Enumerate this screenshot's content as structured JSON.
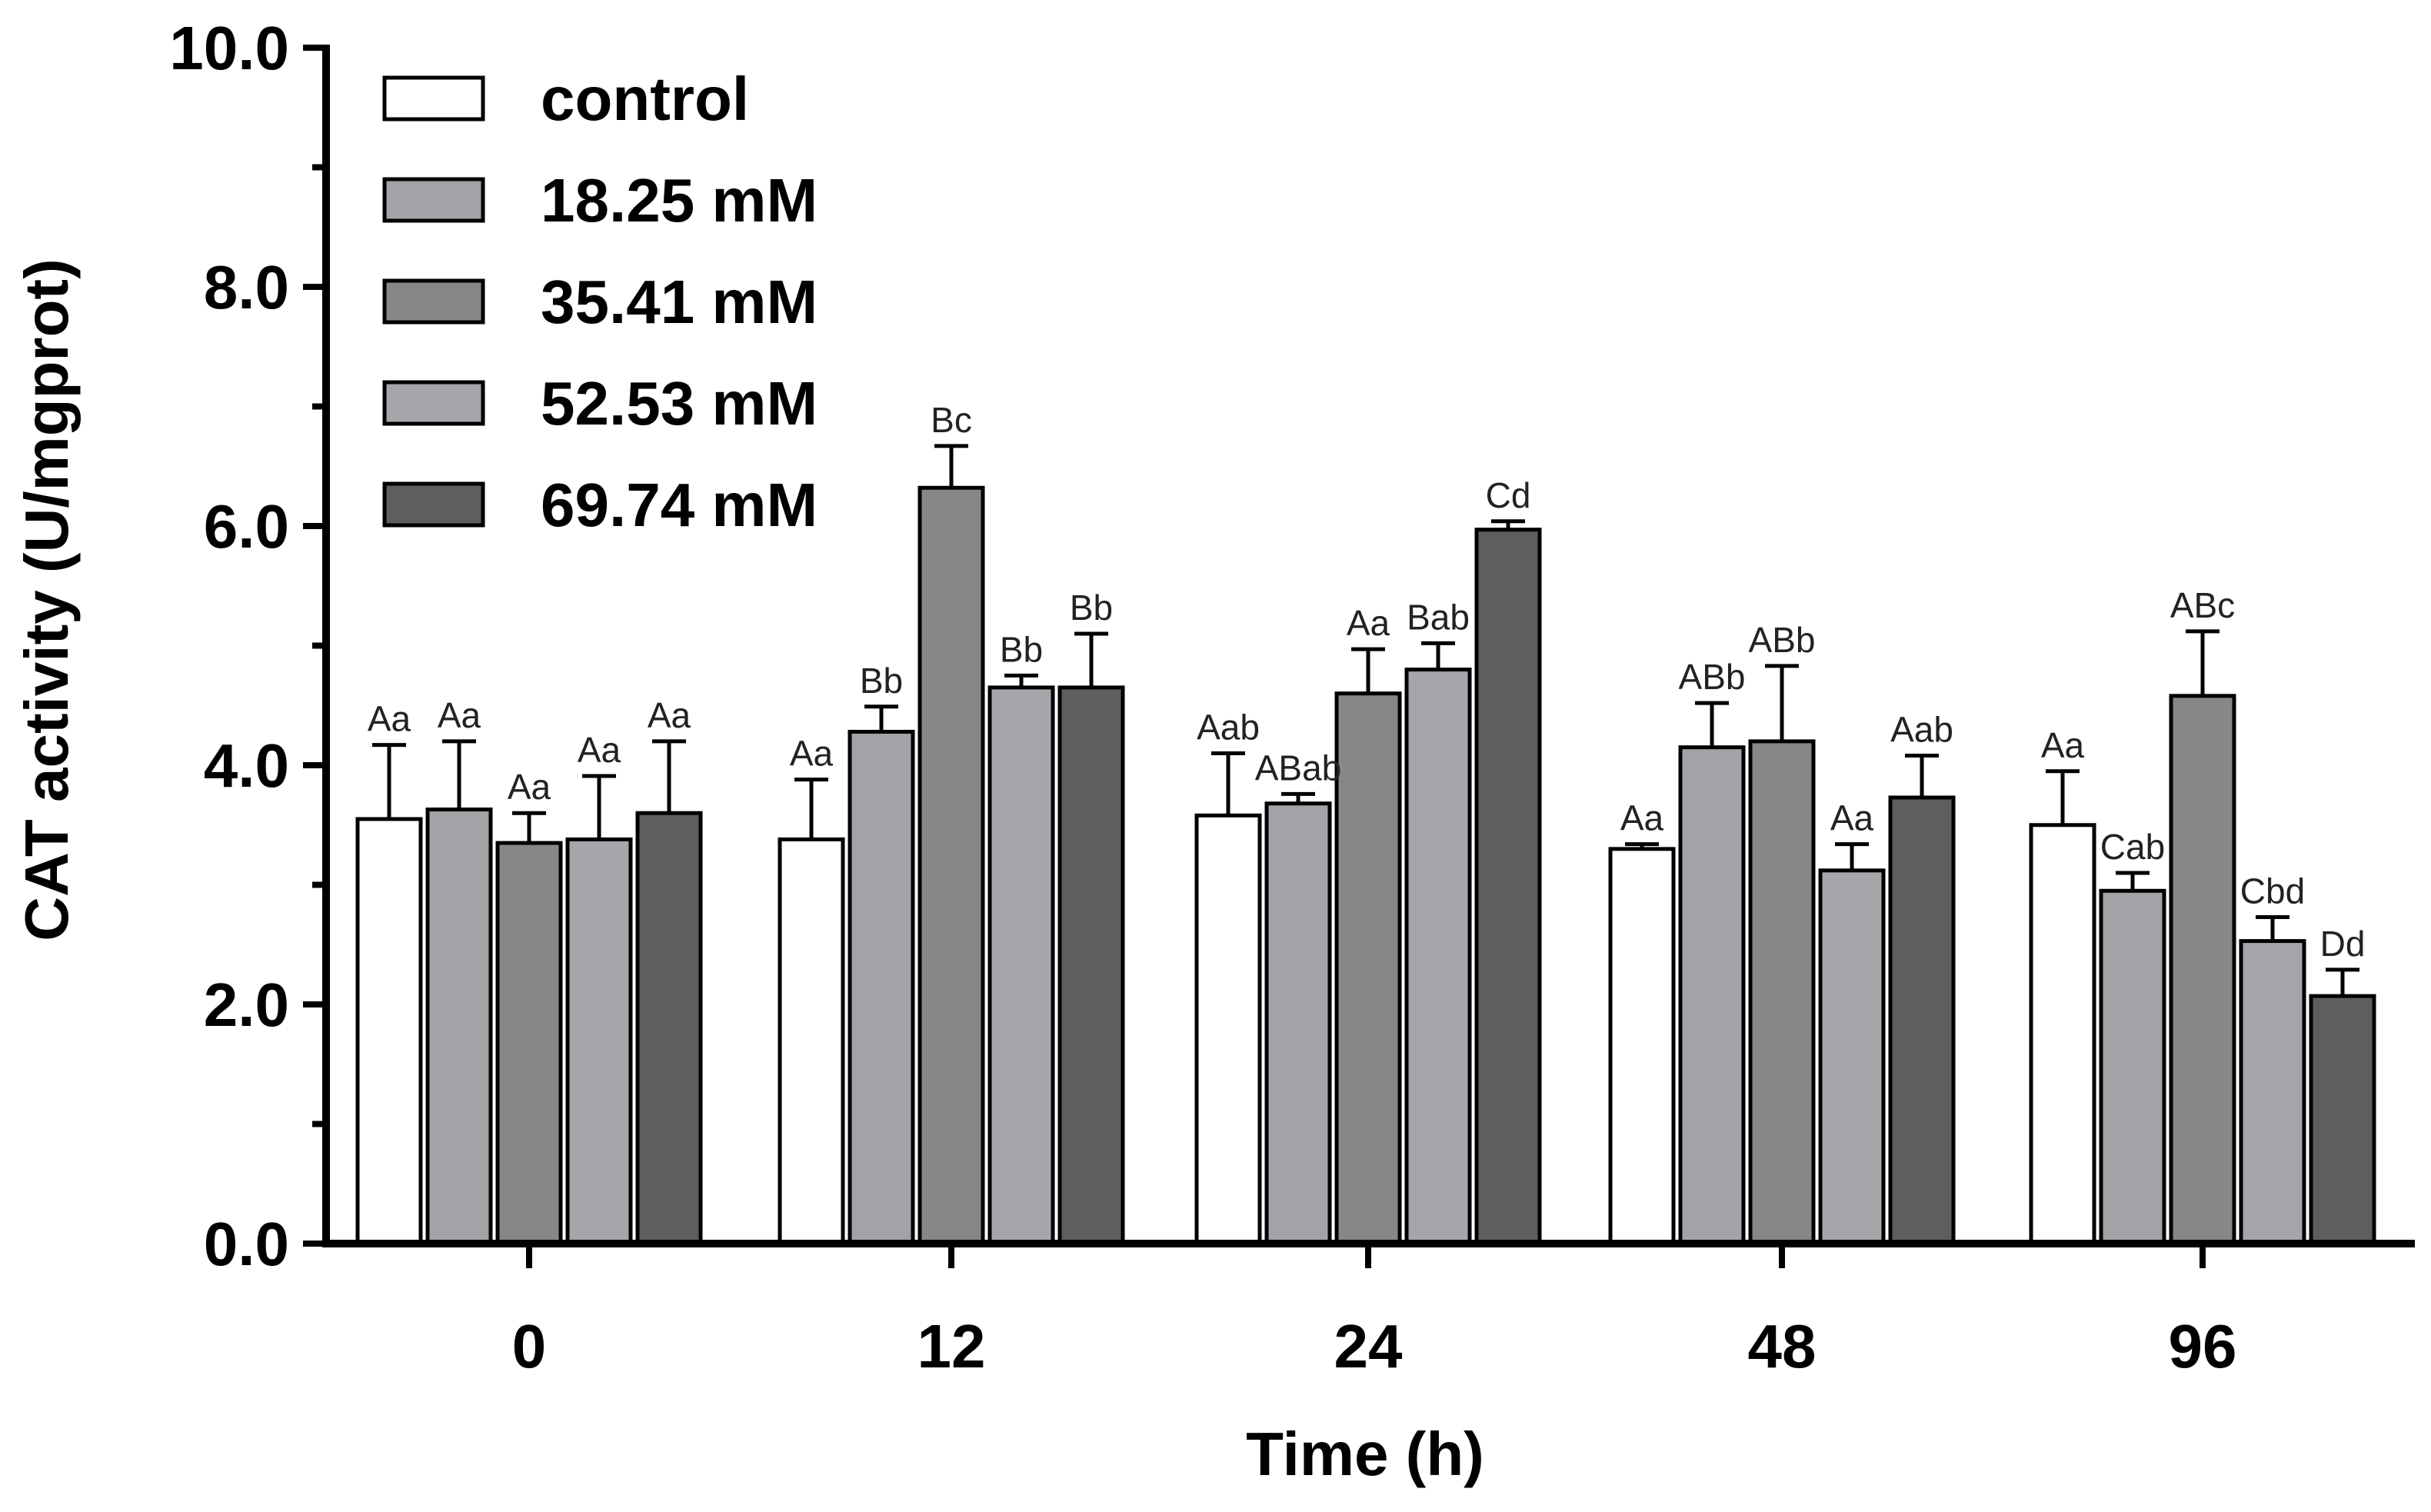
{
  "chart_data": {
    "type": "bar",
    "xlabel": "Time (h)",
    "ylabel": "CAT activity (U/mgprot)",
    "ylim": [
      0,
      10
    ],
    "yticks": [
      "0.0",
      "2.0",
      "4.0",
      "6.0",
      "8.0",
      "10.0"
    ],
    "categories": [
      "0",
      "12",
      "24",
      "48",
      "96"
    ],
    "legend_position": "top-left",
    "grid": false,
    "series": [
      {
        "name": "control",
        "color": "#ffffff",
        "values": [
          3.55,
          3.38,
          3.58,
          3.3,
          3.5
        ],
        "errors": [
          0.62,
          0.5,
          0.52,
          0.04,
          0.45
        ],
        "labels": [
          "Aa",
          "Aa",
          "Aab",
          "Aa",
          "Aa"
        ]
      },
      {
        "name": "18.25 mM",
        "color": "#a3a3a7",
        "values": [
          3.63,
          4.28,
          3.68,
          4.15,
          2.95
        ],
        "errors": [
          0.57,
          0.21,
          0.08,
          0.37,
          0.15
        ],
        "labels": [
          "Aa",
          "Bb",
          "ABab",
          "ABb",
          "Cab"
        ]
      },
      {
        "name": "35.41 mM",
        "color": "#87878a",
        "values": [
          3.35,
          6.32,
          4.6,
          4.2,
          4.58
        ],
        "errors": [
          0.25,
          0.35,
          0.37,
          0.63,
          0.54
        ],
        "labels": [
          "Aa",
          "Bc",
          "Aa",
          "ABb",
          "ABc"
        ]
      },
      {
        "name": "52.53 mM",
        "color": "#a6a6aa",
        "values": [
          3.38,
          4.65,
          4.8,
          3.12,
          2.53
        ],
        "errors": [
          0.53,
          0.1,
          0.22,
          0.22,
          0.2
        ],
        "labels": [
          "Aa",
          "Bb",
          "Bab",
          "Aa",
          "Cbd"
        ]
      },
      {
        "name": "69.74 mM",
        "color": "#5e5e60",
        "values": [
          3.6,
          4.65,
          5.97,
          3.73,
          2.07
        ],
        "errors": [
          0.6,
          0.45,
          0.07,
          0.35,
          0.22
        ],
        "labels": [
          "Aa",
          "Bb",
          "Cd",
          "Aab",
          "Dd"
        ]
      }
    ]
  }
}
